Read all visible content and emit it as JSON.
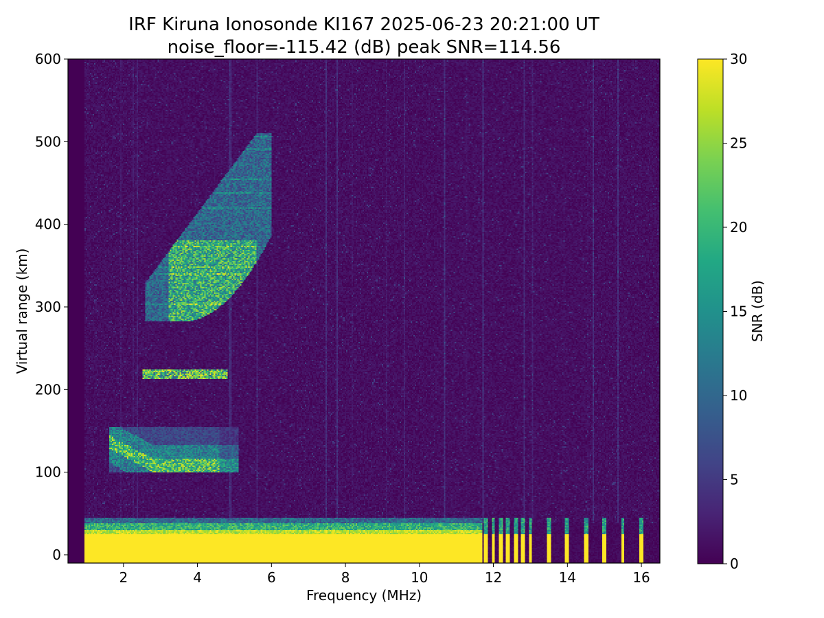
{
  "chart_data": {
    "type": "heatmap",
    "title": "IRF Kiruna Ionosonde KI167 2025-06-23 20:21:00  UT",
    "subtitle": "noise_floor=-115.42 (dB) peak SNR=114.56",
    "xlabel": "Frequency (MHz)",
    "ylabel": "Virtual range (km)",
    "colorbar_label": "SNR (dB)",
    "colormap": "viridis",
    "xlim": [
      0.5,
      16.5
    ],
    "ylim": [
      -10,
      600
    ],
    "clim": [
      0,
      30
    ],
    "x_ticks": [
      2,
      4,
      6,
      8,
      10,
      12,
      14,
      16
    ],
    "y_ticks": [
      0,
      100,
      200,
      300,
      400,
      500,
      600
    ],
    "colorbar_ticks": [
      0,
      5,
      10,
      15,
      20,
      25,
      30
    ],
    "data_start_freq_mhz": 0.95,
    "ground_echo_band_km": [
      0,
      45
    ],
    "traces": [
      {
        "layer": "E",
        "freq_range_mhz": [
          1.6,
          5.1
        ],
        "range_km": [
          100,
          150
        ]
      },
      {
        "layer": "Es",
        "freq_range_mhz": [
          2.5,
          4.8
        ],
        "range_km": [
          215,
          222
        ]
      },
      {
        "layer": "F",
        "freq_range_mhz": [
          2.6,
          6.0
        ],
        "range_km": [
          280,
          510
        ]
      }
    ],
    "comb_freqs_mhz": [
      11.8,
      12.0,
      12.2,
      12.4,
      12.6,
      12.8,
      13.0,
      13.5,
      14.0,
      14.5,
      15.0,
      15.5,
      16.0
    ]
  }
}
